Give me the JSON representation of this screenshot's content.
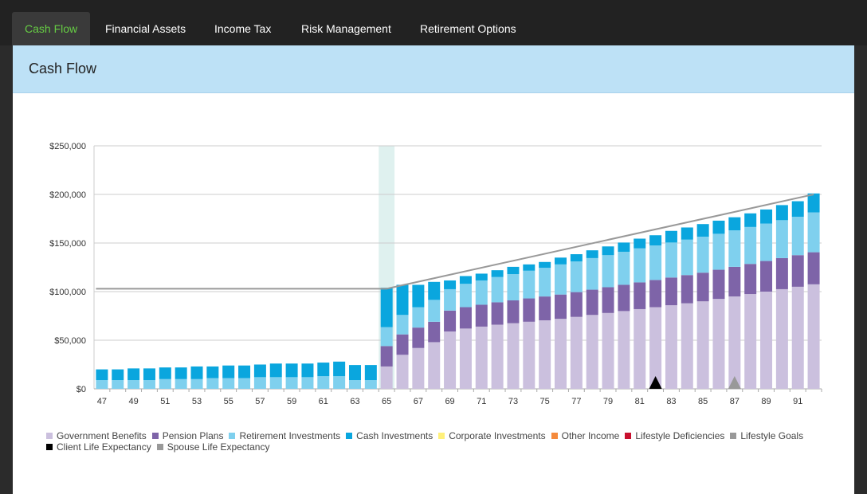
{
  "tabs": [
    {
      "label": "Cash Flow",
      "active": true
    },
    {
      "label": "Financial Assets",
      "active": false
    },
    {
      "label": "Income Tax",
      "active": false
    },
    {
      "label": "Risk Management",
      "active": false
    },
    {
      "label": "Retirement Options",
      "active": false
    }
  ],
  "panel": {
    "title": "Cash Flow"
  },
  "colors": {
    "government_benefits": "#cbc0de",
    "pension_plans": "#7e64a8",
    "retirement_investments": "#7fd0ee",
    "cash_investments": "#0aa6de",
    "corporate_investments": "#fff07a",
    "other_income": "#f58a3c",
    "lifestyle_deficiencies": "#c8102e",
    "lifestyle_goals": "#999999",
    "client_life_expectancy": "#000000",
    "spouse_life_expectancy": "#999999",
    "retirement_highlight": "#dff1ef"
  },
  "legend": [
    [
      {
        "label": "Government Benefits",
        "color_key": "government_benefits"
      },
      {
        "label": "Pension Plans",
        "color_key": "pension_plans"
      },
      {
        "label": "Retirement Investments",
        "color_key": "retirement_investments"
      },
      {
        "label": "Cash Investments",
        "color_key": "cash_investments"
      },
      {
        "label": "Corporate Investments",
        "color_key": "corporate_investments"
      },
      {
        "label": "Other Income",
        "color_key": "other_income"
      },
      {
        "label": "Lifestyle Deficiencies",
        "color_key": "lifestyle_deficiencies"
      },
      {
        "label": "Lifestyle Goals",
        "color_key": "lifestyle_goals"
      }
    ],
    [
      {
        "label": "Client Life Expectancy",
        "color_key": "client_life_expectancy"
      },
      {
        "label": "Spouse Life Expectancy",
        "color_key": "spouse_life_expectancy"
      }
    ]
  ],
  "chart_data": {
    "type": "bar",
    "stacked": true,
    "title": "",
    "xlabel": "",
    "ylabel": "",
    "ylim": [
      0,
      250000
    ],
    "y_ticks": [
      0,
      50000,
      100000,
      150000,
      200000,
      250000
    ],
    "y_tick_labels": [
      "$0",
      "$50,000",
      "$100,000",
      "$150,000",
      "$200,000",
      "$250,000"
    ],
    "x_tick_labels": [
      "47",
      "49",
      "51",
      "53",
      "55",
      "57",
      "59",
      "61",
      "63",
      "65",
      "67",
      "69",
      "71",
      "73",
      "75",
      "77",
      "79",
      "81",
      "83",
      "85",
      "87",
      "89",
      "91"
    ],
    "x": [
      47,
      48,
      49,
      50,
      51,
      52,
      53,
      54,
      55,
      56,
      57,
      58,
      59,
      60,
      61,
      62,
      63,
      64,
      65,
      66,
      67,
      68,
      69,
      70,
      71,
      72,
      73,
      74,
      75,
      76,
      77,
      78,
      79,
      80,
      81,
      82,
      83,
      84,
      85,
      86,
      87,
      88,
      89,
      90,
      91,
      92
    ],
    "grid": true,
    "retirement_highlight_age": 65,
    "series": [
      {
        "name": "Government Benefits",
        "color_key": "government_benefits",
        "values": [
          0,
          0,
          0,
          0,
          0,
          0,
          0,
          0,
          0,
          0,
          0,
          0,
          0,
          0,
          0,
          0,
          0,
          0,
          23000,
          35000,
          42000,
          48000,
          59000,
          62000,
          64000,
          66000,
          67500,
          69000,
          70500,
          72000,
          74000,
          76000,
          78000,
          80000,
          82000,
          84000,
          86000,
          88000,
          90000,
          92500,
          95000,
          97500,
          100000,
          102500,
          105000,
          107500
        ]
      },
      {
        "name": "Pension Plans",
        "color_key": "pension_plans",
        "values": [
          0,
          0,
          0,
          0,
          0,
          0,
          0,
          0,
          0,
          0,
          0,
          0,
          0,
          0,
          0,
          0,
          0,
          0,
          21000,
          21000,
          21000,
          21000,
          21500,
          22000,
          22500,
          23000,
          23500,
          24000,
          24500,
          25000,
          25500,
          26000,
          26500,
          27000,
          27500,
          28000,
          28500,
          29000,
          29500,
          30000,
          30500,
          31000,
          31500,
          32000,
          32500,
          33000
        ]
      },
      {
        "name": "Retirement Investments",
        "color_key": "retirement_investments",
        "values": [
          9000,
          9000,
          9000,
          9000,
          10000,
          10000,
          10000,
          11000,
          11000,
          11000,
          12000,
          12000,
          12000,
          12000,
          13000,
          13000,
          9000,
          9000,
          19500,
          20000,
          21000,
          22500,
          22000,
          24000,
          25000,
          26000,
          27000,
          28500,
          29500,
          31000,
          31500,
          32500,
          33000,
          34000,
          35000,
          35500,
          36000,
          36500,
          37000,
          37000,
          37500,
          38000,
          38500,
          39000,
          39500,
          41000
        ]
      },
      {
        "name": "Cash Investments",
        "color_key": "cash_investments",
        "values": [
          11000,
          11000,
          12000,
          12000,
          12000,
          12000,
          13000,
          12000,
          13000,
          13000,
          13000,
          14000,
          14000,
          14000,
          14000,
          15000,
          15500,
          15500,
          40500,
          31000,
          23000,
          18500,
          9000,
          8000,
          7000,
          7000,
          7500,
          6500,
          6000,
          7000,
          7500,
          8000,
          9000,
          9500,
          10000,
          10500,
          12000,
          12500,
          13000,
          13500,
          13500,
          14000,
          14500,
          15500,
          16000,
          19500
        ]
      }
    ],
    "lifestyle_goals": {
      "name": "Lifestyle Goals",
      "points": [
        [
          47,
          103000
        ],
        [
          65,
          103000
        ],
        [
          92,
          200000
        ]
      ]
    },
    "markers": [
      {
        "name": "Client Life Expectancy",
        "age": 82,
        "color_key": "client_life_expectancy"
      },
      {
        "name": "Spouse Life Expectancy",
        "age": 87,
        "color_key": "spouse_life_expectancy"
      }
    ]
  }
}
